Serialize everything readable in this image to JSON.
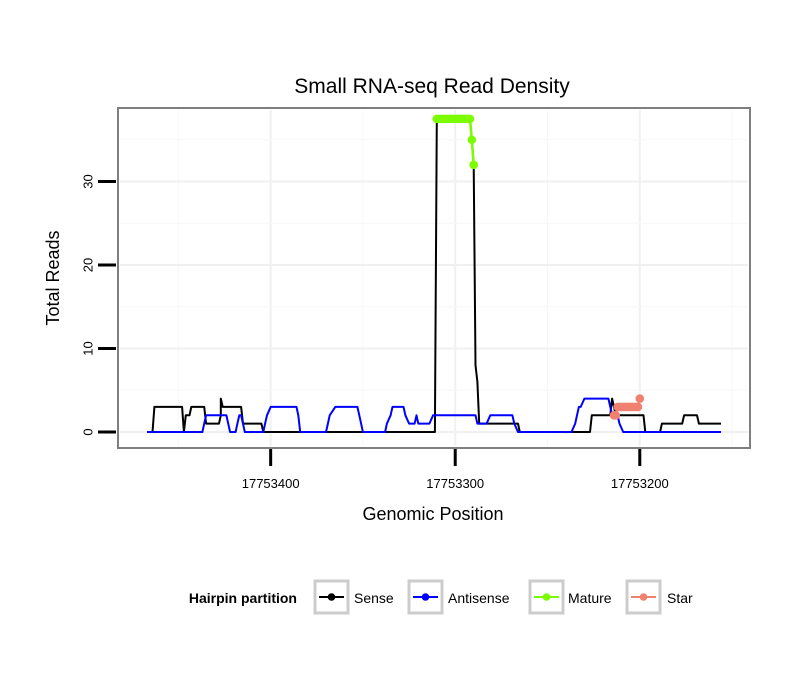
{
  "chart_data": {
    "type": "line",
    "title": "Small RNA-seq Read Density",
    "xlabel": "Genomic Position",
    "ylabel": "Total Reads",
    "xlim": [
      17753480,
      17753130
    ],
    "ylim": [
      -1.5,
      38.5
    ],
    "x_reversed": true,
    "x_ticks": [
      17753400,
      17753300,
      17753200
    ],
    "x_tick_labels": [
      "17753400",
      "17753300",
      "17753200"
    ],
    "y_ticks": [
      0,
      10,
      20,
      30
    ],
    "y_tick_labels": [
      "0",
      "10",
      "20",
      "30"
    ],
    "grid": true,
    "legend": {
      "title": "Hairpin partition",
      "position": "bottom",
      "entries": [
        "Sense",
        "Antisense",
        "Mature",
        "Star"
      ]
    },
    "series": [
      {
        "name": "Sense",
        "color": "#000000",
        "style": "line",
        "points": [
          [
            17753467,
            0
          ],
          [
            17753464,
            0
          ],
          [
            17753463,
            3
          ],
          [
            17753448,
            3
          ],
          [
            17753447,
            0
          ],
          [
            17753446,
            2
          ],
          [
            17753444,
            2
          ],
          [
            17753443,
            3
          ],
          [
            17753436,
            3
          ],
          [
            17753435,
            1
          ],
          [
            17753428,
            1
          ],
          [
            17753427,
            2
          ],
          [
            17753427,
            4
          ],
          [
            17753426,
            3
          ],
          [
            17753416,
            3
          ],
          [
            17753415,
            1
          ],
          [
            17753405,
            1
          ],
          [
            17753404,
            0
          ],
          [
            17753372,
            0
          ],
          [
            17753311,
            0
          ],
          [
            17753310,
            37.5
          ],
          [
            17753292,
            37.5
          ],
          [
            17753291,
            35
          ],
          [
            17753290,
            32
          ],
          [
            17753289,
            8
          ],
          [
            17753288,
            6
          ],
          [
            17753287,
            1
          ],
          [
            17753266,
            1
          ],
          [
            17753265,
            0
          ],
          [
            17753227,
            0
          ],
          [
            17753226,
            2
          ],
          [
            17753216,
            2
          ],
          [
            17753215,
            4
          ],
          [
            17753213,
            2
          ],
          [
            17753198,
            2
          ],
          [
            17753197,
            0
          ],
          [
            17753189,
            0
          ],
          [
            17753188,
            1
          ],
          [
            17753177,
            1
          ],
          [
            17753176,
            2
          ],
          [
            17753169,
            2
          ],
          [
            17753168,
            1
          ],
          [
            17753156,
            1
          ]
        ]
      },
      {
        "name": "Antisense",
        "color": "#0000ff",
        "style": "line",
        "points": [
          [
            17753467,
            0
          ],
          [
            17753437,
            0
          ],
          [
            17753436,
            1
          ],
          [
            17753435,
            2
          ],
          [
            17753424,
            2
          ],
          [
            17753423,
            1
          ],
          [
            17753422,
            0
          ],
          [
            17753419,
            0
          ],
          [
            17753418,
            1
          ],
          [
            17753417,
            2
          ],
          [
            17753416,
            2
          ],
          [
            17753415,
            1
          ],
          [
            17753414,
            0
          ],
          [
            17753404,
            0
          ],
          [
            17753403,
            1
          ],
          [
            17753402,
            2
          ],
          [
            17753400,
            3
          ],
          [
            17753386,
            3
          ],
          [
            17753385,
            2
          ],
          [
            17753384,
            0
          ],
          [
            17753370,
            0
          ],
          [
            17753369,
            1
          ],
          [
            17753368,
            2
          ],
          [
            17753365,
            3
          ],
          [
            17753353,
            3
          ],
          [
            17753352,
            2
          ],
          [
            17753351,
            1
          ],
          [
            17753350,
            0
          ],
          [
            17753338,
            0
          ],
          [
            17753337,
            1
          ],
          [
            17753335,
            2
          ],
          [
            17753334,
            3
          ],
          [
            17753328,
            3
          ],
          [
            17753327,
            2
          ],
          [
            17753325,
            1
          ],
          [
            17753322,
            1
          ],
          [
            17753321,
            2
          ],
          [
            17753320,
            1
          ],
          [
            17753315,
            1
          ],
          [
            17753314,
            1
          ],
          [
            17753312,
            2
          ],
          [
            17753289,
            2
          ],
          [
            17753288,
            1
          ],
          [
            17753283,
            1
          ],
          [
            17753281,
            2
          ],
          [
            17753269,
            2
          ],
          [
            17753268,
            1
          ],
          [
            17753266,
            0
          ],
          [
            17753237,
            0
          ],
          [
            17753235,
            1
          ],
          [
            17753234,
            2
          ],
          [
            17753233,
            3
          ],
          [
            17753232,
            3
          ],
          [
            17753230,
            4
          ],
          [
            17753217,
            4
          ],
          [
            17753216,
            3
          ],
          [
            17753215,
            2
          ],
          [
            17753212,
            2
          ],
          [
            17753211,
            1
          ],
          [
            17753209,
            0
          ],
          [
            17753156,
            0
          ]
        ]
      },
      {
        "name": "Mature",
        "color": "#7cfc00",
        "style": "points",
        "points": [
          [
            17753310,
            37.5
          ],
          [
            17753309,
            37.5
          ],
          [
            17753308,
            37.5
          ],
          [
            17753307,
            37.5
          ],
          [
            17753306,
            37.5
          ],
          [
            17753305,
            37.5
          ],
          [
            17753304,
            37.5
          ],
          [
            17753303,
            37.5
          ],
          [
            17753302,
            37.5
          ],
          [
            17753301,
            37.5
          ],
          [
            17753300,
            37.5
          ],
          [
            17753299,
            37.5
          ],
          [
            17753298,
            37.5
          ],
          [
            17753297,
            37.5
          ],
          [
            17753296,
            37.5
          ],
          [
            17753295,
            37.5
          ],
          [
            17753294,
            37.5
          ],
          [
            17753293,
            37.5
          ],
          [
            17753292,
            37.5
          ],
          [
            17753291,
            35
          ],
          [
            17753290,
            32
          ]
        ]
      },
      {
        "name": "Star",
        "color": "#f08070",
        "style": "points",
        "points": [
          [
            17753214,
            2
          ],
          [
            17753213,
            2
          ],
          [
            17753212,
            3
          ],
          [
            17753211,
            3
          ],
          [
            17753210,
            3
          ],
          [
            17753209,
            3
          ],
          [
            17753208,
            3
          ],
          [
            17753207,
            3
          ],
          [
            17753206,
            3
          ],
          [
            17753205,
            3
          ],
          [
            17753204,
            3
          ],
          [
            17753203,
            3
          ],
          [
            17753202,
            3
          ],
          [
            17753201,
            3
          ],
          [
            17753200,
            4
          ]
        ]
      }
    ]
  }
}
